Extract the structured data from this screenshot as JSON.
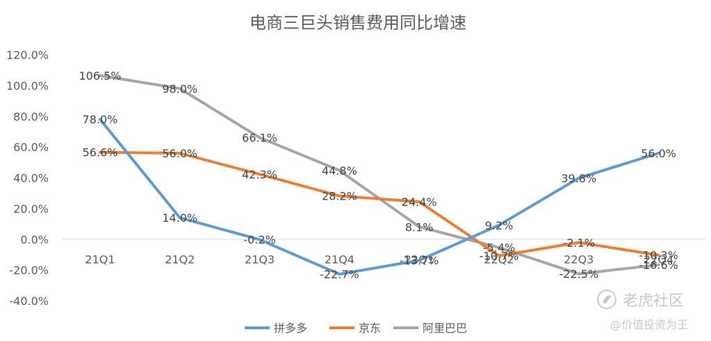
{
  "chart_data": {
    "type": "line",
    "title": "电商三巨头销售费用同比增速",
    "categories": [
      "21Q1",
      "21Q2",
      "21Q3",
      "21Q4",
      "22Q1",
      "22Q2",
      "22Q3",
      "22Q4"
    ],
    "y_ticks": [
      "120.0%",
      "100.0%",
      "80.0%",
      "60.0%",
      "40.0%",
      "20.0%",
      "0.0%",
      "-20.0%",
      "-40.0%"
    ],
    "ylim": [
      -40,
      120
    ],
    "grid": false,
    "legend": "bottom",
    "series": [
      {
        "name": "拼多多",
        "color": "#5B9BD5",
        "values": [
          78.0,
          14.0,
          -0.2,
          -22.7,
          -13.7,
          9.2,
          39.8,
          56.0
        ],
        "labels": [
          "78.0%",
          "14.0%",
          "-0.2%",
          "-22.7%",
          "-13.7%",
          "9.2%",
          "39.8%",
          "56.0%"
        ]
      },
      {
        "name": "京东",
        "color": "#ED7D31",
        "values": [
          56.6,
          56.0,
          42.3,
          28.2,
          24.4,
          -10.7,
          -2.1,
          -10.3
        ],
        "labels": [
          "56.6%",
          "56.0%",
          "42.3%",
          "28.2%",
          "24.4%",
          "-10.7%",
          "-2.1%",
          "-10.3%"
        ]
      },
      {
        "name": "阿里巴巴",
        "color": "#A5A5A5",
        "values": [
          106.5,
          98.0,
          66.1,
          44.8,
          8.1,
          -5.4,
          -22.5,
          -16.6
        ],
        "labels": [
          "106.5%",
          "98.0%",
          "66.1%",
          "44.8%",
          "8.1%",
          "-5.4%",
          "-22.5%",
          "-16.6%"
        ]
      }
    ]
  },
  "watermark": {
    "brand": "老虎社区",
    "author": "@价值投资为王",
    "icon": "tiger-community-logo-icon"
  }
}
